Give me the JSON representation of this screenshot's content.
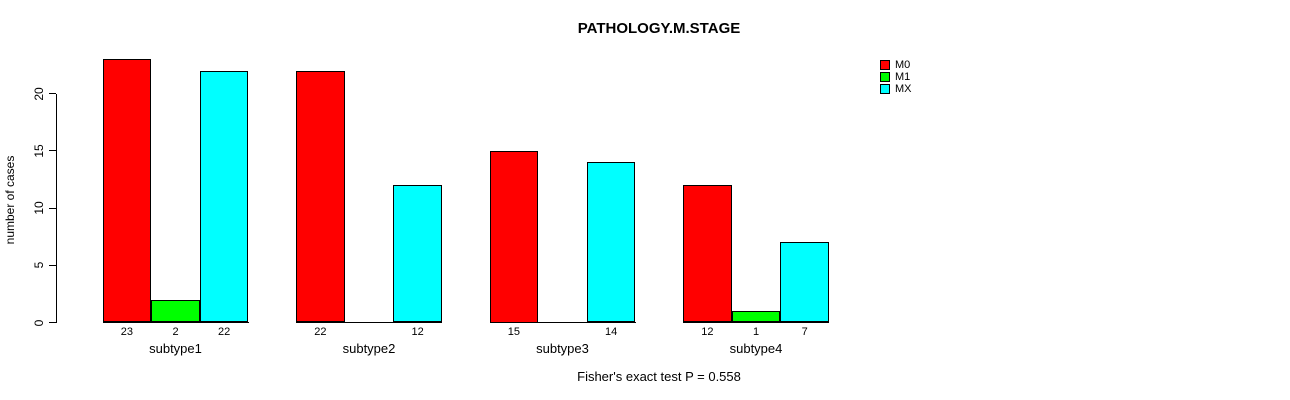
{
  "chart_data": {
    "type": "bar",
    "title": "PATHOLOGY.M.STAGE",
    "ylabel": "number of cases",
    "xlabel": "",
    "categories": [
      "subtype1",
      "subtype2",
      "subtype3",
      "subtype4"
    ],
    "series": [
      {
        "name": "M0",
        "color": "#ff0000",
        "values": [
          23,
          22,
          15,
          12
        ]
      },
      {
        "name": "M1",
        "color": "#00ff00",
        "values": [
          2,
          0,
          0,
          1
        ]
      },
      {
        "name": "MX",
        "color": "#00ffff",
        "values": [
          22,
          12,
          14,
          7
        ]
      }
    ],
    "bar_value_labels": [
      [
        "23",
        "2",
        "22"
      ],
      [
        "22",
        "",
        "12"
      ],
      [
        "15",
        "",
        "14"
      ],
      [
        "12",
        "1",
        "7"
      ]
    ],
    "yticks": [
      0,
      5,
      10,
      15,
      20
    ],
    "ylim": [
      0,
      23
    ],
    "grid": false,
    "legend_position": "top-right",
    "annotation": "Fisher's exact test P = 0.558"
  },
  "colors": {
    "axis": "#000000",
    "bar_border": "#000000",
    "background": "#ffffff"
  }
}
